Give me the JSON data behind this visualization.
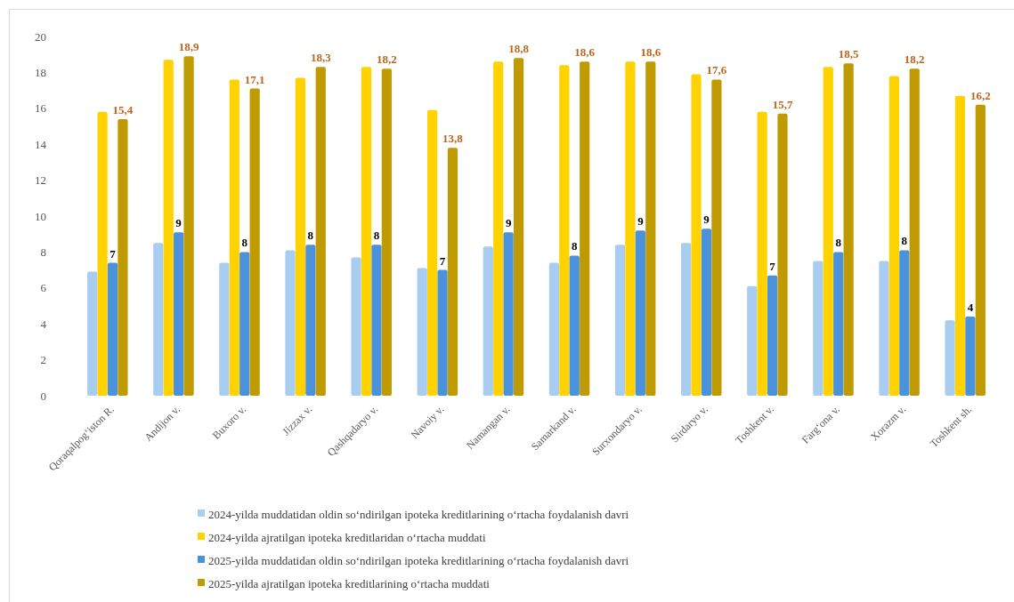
{
  "chart_data": {
    "type": "bar",
    "categories": [
      "Qoraqalpog‘iston R.",
      "Andijon v.",
      "Buxoro v.",
      "Jizzax v.",
      "Qashqadaryo v.",
      "Navoiy v.",
      "Namangan v.",
      "Samarkand v.",
      "Surxondaryo v.",
      "Sirdaryo v.",
      "Toshkent v.",
      "Farg‘ona v.",
      "Xorazm v.",
      "Toshkent sh."
    ],
    "series": [
      {
        "name": "2024-yilda muddatidan oldin so‘ndirilgan ipoteka kreditlarining o‘rtacha foydalanish davri",
        "color": "#a9cdf0",
        "values": [
          6.9,
          8.5,
          7.4,
          8.1,
          7.7,
          7.1,
          8.3,
          7.4,
          8.4,
          8.5,
          6.1,
          7.5,
          7.5,
          4.2
        ]
      },
      {
        "name": "2024-yilda ajratilgan ipoteka kreditlaridan o‘rtacha muddati",
        "color": "#ffd200",
        "values": [
          15.8,
          18.7,
          17.6,
          17.7,
          18.3,
          15.9,
          18.6,
          18.4,
          18.6,
          17.9,
          15.8,
          18.3,
          17.8,
          16.7
        ]
      },
      {
        "name": "2025-yilda muddatidan oldin so‘ndirilgan ipoteka kreditlarining o‘rtacha foydalanish davri",
        "color": "#4a93dc",
        "values": [
          7.4,
          9.1,
          8.0,
          8.4,
          8.4,
          7.0,
          9.1,
          7.8,
          9.2,
          9.3,
          6.7,
          8.0,
          8.1,
          4.4
        ],
        "value_labels": [
          "7",
          "9",
          "8",
          "8",
          "8",
          "7",
          "9",
          "8",
          "9",
          "9",
          "7",
          "8",
          "8",
          "4"
        ]
      },
      {
        "name": "2025-yilda ajratilgan ipoteka kreditlarining o‘rtacha muddati",
        "color": "#bf9a00",
        "values": [
          15.4,
          18.9,
          17.1,
          18.3,
          18.2,
          13.8,
          18.8,
          18.6,
          18.6,
          17.6,
          15.7,
          18.5,
          18.2,
          16.2
        ],
        "value_labels": [
          "15,4",
          "18,9",
          "17,1",
          "18,3",
          "18,2",
          "13,8",
          "18,8",
          "18,6",
          "18,6",
          "17,6",
          "15,7",
          "18,5",
          "18,2",
          "16,2"
        ]
      }
    ],
    "ylim": [
      0,
      20
    ],
    "yticks": [
      0,
      2,
      4,
      6,
      8,
      10,
      12,
      14,
      16,
      18,
      20
    ],
    "grid": false,
    "legend": "bottom"
  }
}
